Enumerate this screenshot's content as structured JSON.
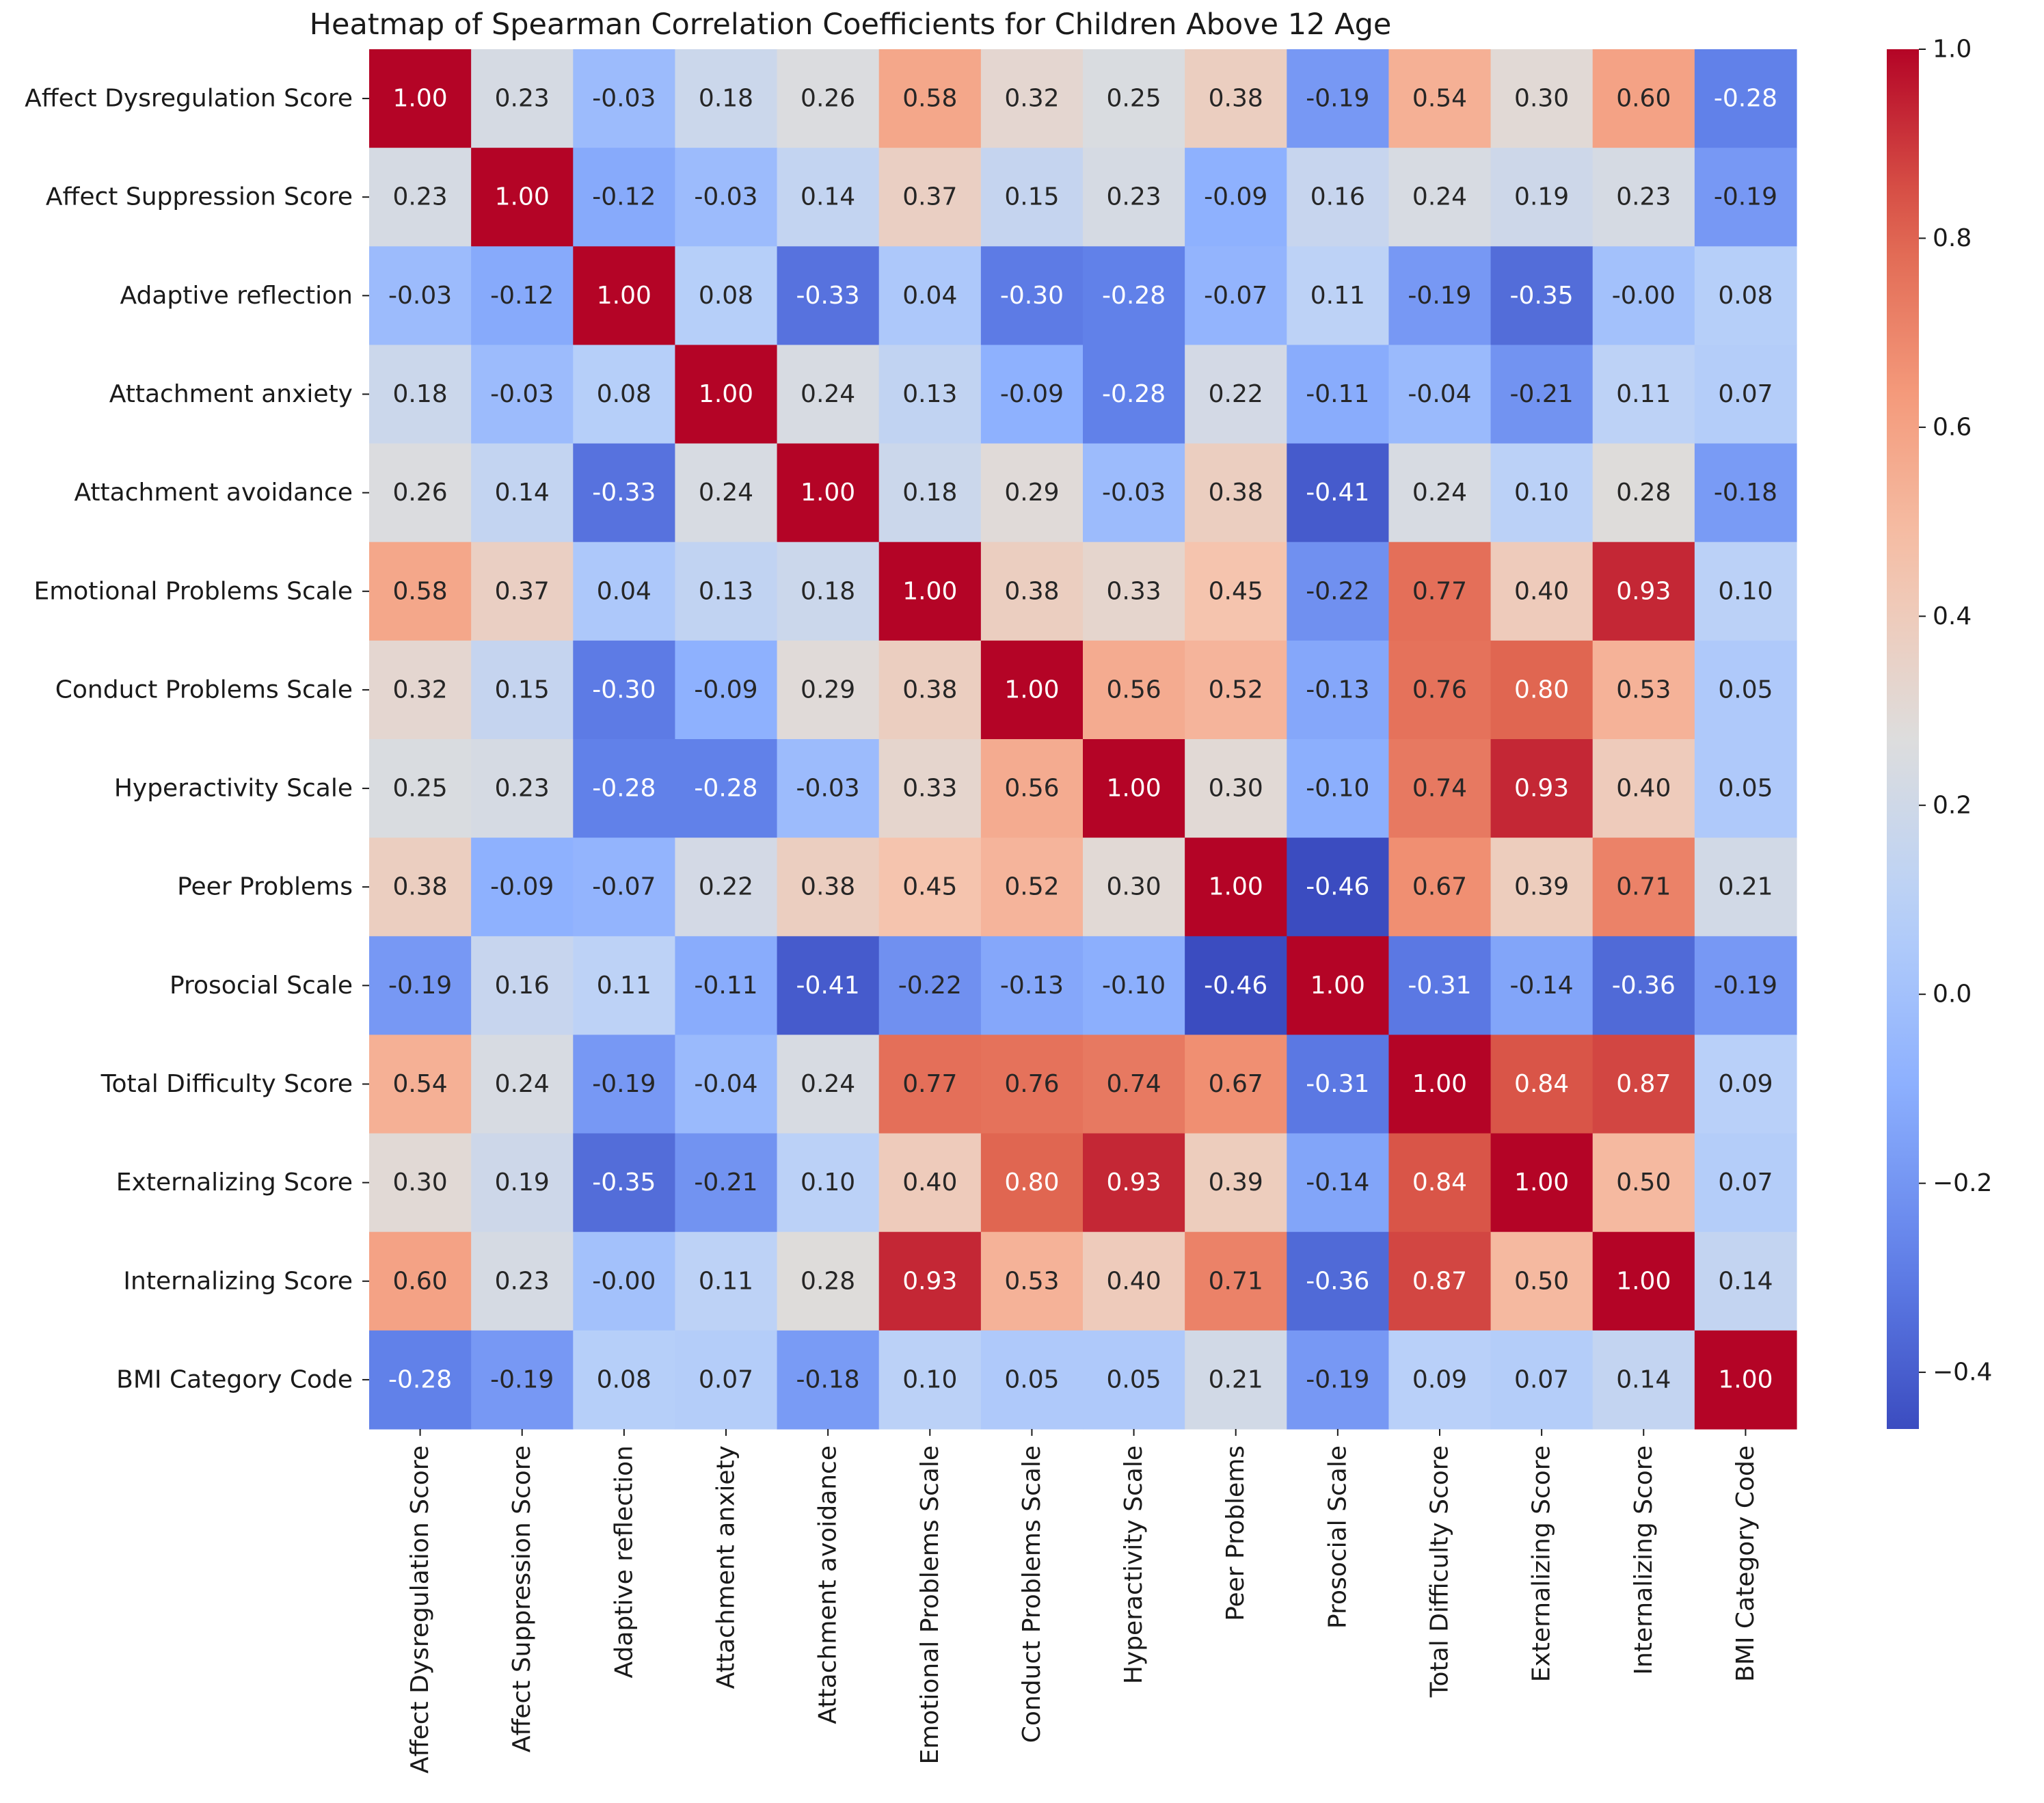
{
  "chart_data": {
    "type": "heatmap",
    "title": "Heatmap of Spearman Correlation Coefficients for Children Above 12 Age",
    "labels": [
      "Affect Dysregulation Score",
      "Affect Suppression Score",
      "Adaptive reflection",
      "Attachment anxiety",
      "Attachment avoidance",
      "Emotional Problems Scale",
      "Conduct Problems Scale",
      "Hyperactivity Scale",
      "Peer Problems",
      "Prosocial Scale",
      "Total Difficulty Score",
      "Externalizing Score",
      "Internalizing Score",
      "BMI Category Code"
    ],
    "matrix": [
      [
        1.0,
        0.23,
        -0.03,
        0.18,
        0.26,
        0.58,
        0.32,
        0.25,
        0.38,
        -0.19,
        0.54,
        0.3,
        0.6,
        -0.28
      ],
      [
        0.23,
        1.0,
        -0.12,
        -0.03,
        0.14,
        0.37,
        0.15,
        0.23,
        -0.09,
        0.16,
        0.24,
        0.19,
        0.23,
        -0.19
      ],
      [
        -0.03,
        -0.12,
        1.0,
        0.08,
        -0.33,
        0.04,
        -0.3,
        -0.28,
        -0.07,
        0.11,
        -0.19,
        -0.35,
        -0.0,
        0.08
      ],
      [
        0.18,
        -0.03,
        0.08,
        1.0,
        0.24,
        0.13,
        -0.09,
        -0.28,
        0.22,
        -0.11,
        -0.04,
        -0.21,
        0.11,
        0.07
      ],
      [
        0.26,
        0.14,
        -0.33,
        0.24,
        1.0,
        0.18,
        0.29,
        -0.03,
        0.38,
        -0.41,
        0.24,
        0.1,
        0.28,
        -0.18
      ],
      [
        0.58,
        0.37,
        0.04,
        0.13,
        0.18,
        1.0,
        0.38,
        0.33,
        0.45,
        -0.22,
        0.77,
        0.4,
        0.93,
        0.1
      ],
      [
        0.32,
        0.15,
        -0.3,
        -0.09,
        0.29,
        0.38,
        1.0,
        0.56,
        0.52,
        -0.13,
        0.76,
        0.8,
        0.53,
        0.05
      ],
      [
        0.25,
        0.23,
        -0.28,
        -0.28,
        -0.03,
        0.33,
        0.56,
        1.0,
        0.3,
        -0.1,
        0.74,
        0.93,
        0.4,
        0.05
      ],
      [
        0.38,
        -0.09,
        -0.07,
        0.22,
        0.38,
        0.45,
        0.52,
        0.3,
        1.0,
        -0.46,
        0.67,
        0.39,
        0.71,
        0.21
      ],
      [
        -0.19,
        0.16,
        0.11,
        -0.11,
        -0.41,
        -0.22,
        -0.13,
        -0.1,
        -0.46,
        1.0,
        -0.31,
        -0.14,
        -0.36,
        -0.19
      ],
      [
        0.54,
        0.24,
        -0.19,
        -0.04,
        0.24,
        0.77,
        0.76,
        0.74,
        0.67,
        -0.31,
        1.0,
        0.84,
        0.87,
        0.09
      ],
      [
        0.3,
        0.19,
        -0.35,
        -0.21,
        0.1,
        0.4,
        0.8,
        0.93,
        0.39,
        -0.14,
        0.84,
        1.0,
        0.5,
        0.07
      ],
      [
        0.6,
        0.23,
        -0.0,
        0.11,
        0.28,
        0.93,
        0.53,
        0.4,
        0.71,
        -0.36,
        0.87,
        0.5,
        1.0,
        0.14
      ],
      [
        -0.28,
        -0.19,
        0.08,
        0.07,
        -0.18,
        0.1,
        0.05,
        0.05,
        0.21,
        -0.19,
        0.09,
        0.07,
        0.14,
        1.0
      ]
    ],
    "cell_label_strings": [
      [
        "1.00",
        "0.23",
        "-0.03",
        "0.18",
        "0.26",
        "0.58",
        "0.32",
        "0.25",
        "0.38",
        "-0.19",
        "0.54",
        "0.30",
        "0.60",
        "-0.28"
      ],
      [
        "0.23",
        "1.00",
        "-0.12",
        "-0.03",
        "0.14",
        "0.37",
        "0.15",
        "0.23",
        "-0.09",
        "0.16",
        "0.24",
        "0.19",
        "0.23",
        "-0.19"
      ],
      [
        "-0.03",
        "-0.12",
        "1.00",
        "0.08",
        "-0.33",
        "0.04",
        "-0.30",
        "-0.28",
        "-0.07",
        "0.11",
        "-0.19",
        "-0.35",
        "-0.00",
        "0.08"
      ],
      [
        "0.18",
        "-0.03",
        "0.08",
        "1.00",
        "0.24",
        "0.13",
        "-0.09",
        "-0.28",
        "0.22",
        "-0.11",
        "-0.04",
        "-0.21",
        "0.11",
        "0.07"
      ],
      [
        "0.26",
        "0.14",
        "-0.33",
        "0.24",
        "1.00",
        "0.18",
        "0.29",
        "-0.03",
        "0.38",
        "-0.41",
        "0.24",
        "0.10",
        "0.28",
        "-0.18"
      ],
      [
        "0.58",
        "0.37",
        "0.04",
        "0.13",
        "0.18",
        "1.00",
        "0.38",
        "0.33",
        "0.45",
        "-0.22",
        "0.77",
        "0.40",
        "0.93",
        "0.10"
      ],
      [
        "0.32",
        "0.15",
        "-0.30",
        "-0.09",
        "0.29",
        "0.38",
        "1.00",
        "0.56",
        "0.52",
        "-0.13",
        "0.76",
        "0.80",
        "0.53",
        "0.05"
      ],
      [
        "0.25",
        "0.23",
        "-0.28",
        "-0.28",
        "-0.03",
        "0.33",
        "0.56",
        "1.00",
        "0.30",
        "-0.10",
        "0.74",
        "0.93",
        "0.40",
        "0.05"
      ],
      [
        "0.38",
        "-0.09",
        "-0.07",
        "0.22",
        "0.38",
        "0.45",
        "0.52",
        "0.30",
        "1.00",
        "-0.46",
        "0.67",
        "0.39",
        "0.71",
        "0.21"
      ],
      [
        "-0.19",
        "0.16",
        "0.11",
        "-0.11",
        "-0.41",
        "-0.22",
        "-0.13",
        "-0.10",
        "-0.46",
        "1.00",
        "-0.31",
        "-0.14",
        "-0.36",
        "-0.19"
      ],
      [
        "0.54",
        "0.24",
        "-0.19",
        "-0.04",
        "0.24",
        "0.77",
        "0.76",
        "0.74",
        "0.67",
        "-0.31",
        "1.00",
        "0.84",
        "0.87",
        "0.09"
      ],
      [
        "0.30",
        "0.19",
        "-0.35",
        "-0.21",
        "0.10",
        "0.40",
        "0.80",
        "0.93",
        "0.39",
        "-0.14",
        "0.84",
        "1.00",
        "0.50",
        "0.07"
      ],
      [
        "0.60",
        "0.23",
        "-0.00",
        "0.11",
        "0.28",
        "0.93",
        "0.53",
        "0.40",
        "0.71",
        "-0.36",
        "0.87",
        "0.50",
        "1.00",
        "0.14"
      ],
      [
        "-0.28",
        "-0.19",
        "0.08",
        "0.07",
        "-0.18",
        "0.10",
        "0.05",
        "0.05",
        "0.21",
        "-0.19",
        "0.09",
        "0.07",
        "0.14",
        "1.00"
      ]
    ],
    "colorbar": {
      "colormap": "coolwarm",
      "range": [
        -0.46,
        1.0
      ],
      "ticks": [
        1.0,
        0.8,
        0.6,
        0.4,
        0.2,
        0.0,
        -0.2,
        -0.4
      ],
      "tick_labels": [
        "1.0",
        "0.8",
        "0.6",
        "0.4",
        "0.2",
        "0.0",
        "−0.2",
        "−0.4"
      ]
    },
    "xlabel": "",
    "ylabel": ""
  }
}
